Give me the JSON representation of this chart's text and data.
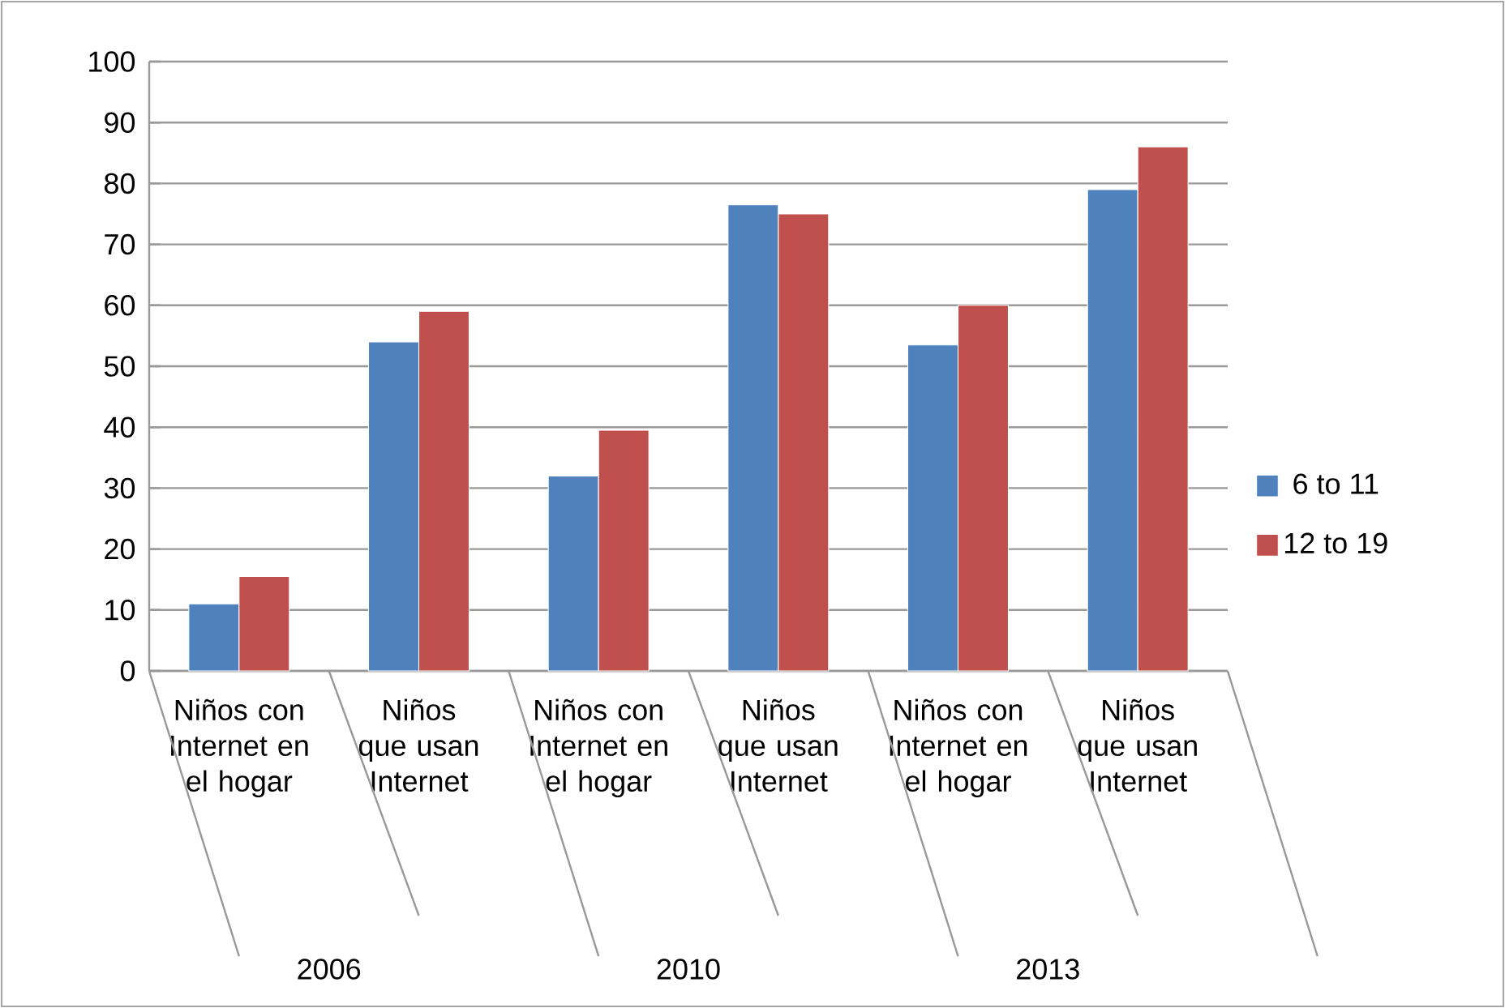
{
  "chart_data": {
    "type": "bar",
    "categories": [
      "Niños con Internet en el hogar",
      "Niños que usan Internet",
      "Niños con Internet en el hogar",
      "Niños que usan Internet",
      "Niños con Internet en el hogar",
      "Niños que usan Internet"
    ],
    "annotations": [
      "2006",
      "2010",
      "2013"
    ],
    "series": [
      {
        "name": "6 to 11",
        "color": "#4f81bd",
        "values": [
          11,
          54,
          32,
          76.5,
          53.5,
          79
        ]
      },
      {
        "name": "12 to 19",
        "color": "#c0504d",
        "values": [
          15.5,
          59,
          39.5,
          75,
          60,
          86
        ]
      }
    ],
    "ylim": [
      0,
      100
    ],
    "yticks": [
      0,
      10,
      20,
      30,
      40,
      50,
      60,
      70,
      80,
      90,
      100
    ],
    "grid": "y",
    "legend": "right"
  }
}
